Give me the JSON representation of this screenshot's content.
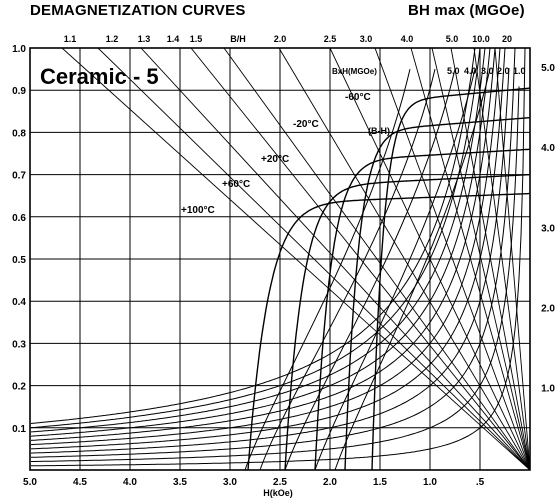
{
  "header": {
    "left_title": "DEMAGNETIZATION CURVES",
    "right_title": "BH max (MGOe)"
  },
  "chart_data": {
    "type": "line",
    "title": "Ceramic - 5",
    "xlabel": "H(kOe)",
    "x_direction": "reversed",
    "xlim": [
      5.0,
      0.0
    ],
    "ylim": [
      0.0,
      1.0
    ],
    "x_ticks": [
      "5.0",
      "4.5",
      "4.0",
      "3.5",
      "3.0",
      "2.5",
      "2.0",
      "1.5",
      "1.0",
      ".5"
    ],
    "y_ticks": [
      "0.1",
      "0.2",
      "0.3",
      "0.4",
      "0.5",
      "0.6",
      "0.7",
      "0.8",
      "0.9",
      "1.0"
    ],
    "right_ticks": [
      "1.0",
      "2.0",
      "3.0",
      "4.0",
      "5.0"
    ],
    "top_scale_label": "B/H",
    "top_scale_ticks": [
      "1.1",
      "1.2",
      "1.3",
      "1.4",
      "1.5",
      "2.0",
      "2.5",
      "3.0",
      "4.0",
      "5.0",
      "10.0",
      "20"
    ],
    "bh_label": "BxH(MGOe)",
    "bh_contour_labels": [
      "5.0",
      "4.0",
      "3.0",
      "2.0",
      "1.0"
    ],
    "bh_contour_values": [
      0.5,
      0.4,
      0.3,
      0.2,
      0.1
    ],
    "bh_contour_extra_values": [
      0.05,
      0.15,
      0.25,
      0.35,
      0.45,
      0.55
    ],
    "curve_bh_label": "(B-H)",
    "grid": true,
    "series": [
      {
        "name": "-60°C",
        "br": 0.905,
        "hc": 1.58,
        "bt": 0.87
      },
      {
        "name": "-20°C",
        "br": 0.835,
        "hc": 1.85,
        "bt": 0.8
      },
      {
        "name": "+20°C",
        "br": 0.76,
        "hc": 2.15,
        "bt": 0.73
      },
      {
        "name": "+60°C",
        "br": 0.7,
        "hc": 2.45,
        "bt": 0.67
      },
      {
        "name": "+100°C",
        "br": 0.655,
        "hc": 2.82,
        "bt": 0.63
      }
    ],
    "b_curves_x": [
      0.0,
      1.0,
      2.0,
      3.0
    ],
    "b_curves": [
      {
        "name": "-60°C",
        "y": [
          0.92,
          0.89,
          0.67,
          0.0
        ]
      },
      {
        "name": "-20°C",
        "y": [
          0.85,
          0.79,
          0.0,
          0.0
        ]
      },
      {
        "name": "+20°C",
        "y": [
          0.78,
          0.72,
          0.0,
          0.0
        ]
      },
      {
        "name": "+60°C",
        "y": [
          0.71,
          0.67,
          0.0,
          0.0
        ]
      },
      {
        "name": "+100°C",
        "y": [
          0.67,
          0.63,
          0.0,
          0.0
        ]
      }
    ]
  }
}
